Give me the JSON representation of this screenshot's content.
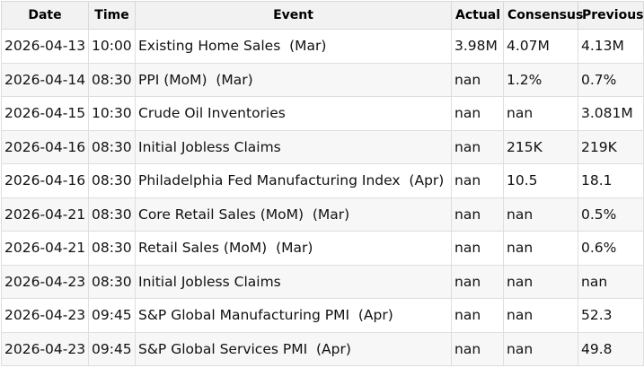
{
  "table": {
    "columns": [
      "Date",
      "Time",
      "Event",
      "Actual",
      "Consensus",
      "Previous"
    ],
    "rows": [
      [
        "2026-04-13",
        "10:00",
        "Existing Home Sales  (Mar)",
        "3.98M",
        "4.07M",
        "4.13M"
      ],
      [
        "2026-04-14",
        "08:30",
        "PPI (MoM)  (Mar)",
        "nan",
        "1.2%",
        "0.7%"
      ],
      [
        "2026-04-15",
        "10:30",
        "Crude Oil Inventories",
        "nan",
        "nan",
        "3.081M"
      ],
      [
        "2026-04-16",
        "08:30",
        "Initial Jobless Claims",
        "nan",
        "215K",
        "219K"
      ],
      [
        "2026-04-16",
        "08:30",
        "Philadelphia Fed Manufacturing Index  (Apr)",
        "nan",
        "10.5",
        "18.1"
      ],
      [
        "2026-04-21",
        "08:30",
        "Core Retail Sales (MoM)  (Mar)",
        "nan",
        "nan",
        "0.5%"
      ],
      [
        "2026-04-21",
        "08:30",
        "Retail Sales (MoM)  (Mar)",
        "nan",
        "nan",
        "0.6%"
      ],
      [
        "2026-04-23",
        "08:30",
        "Initial Jobless Claims",
        "nan",
        "nan",
        "nan"
      ],
      [
        "2026-04-23",
        "09:45",
        "S&P Global Manufacturing PMI  (Apr)",
        "nan",
        "nan",
        "52.3"
      ],
      [
        "2026-04-23",
        "09:45",
        "S&P Global Services PMI  (Apr)",
        "nan",
        "nan",
        "49.8"
      ]
    ]
  }
}
